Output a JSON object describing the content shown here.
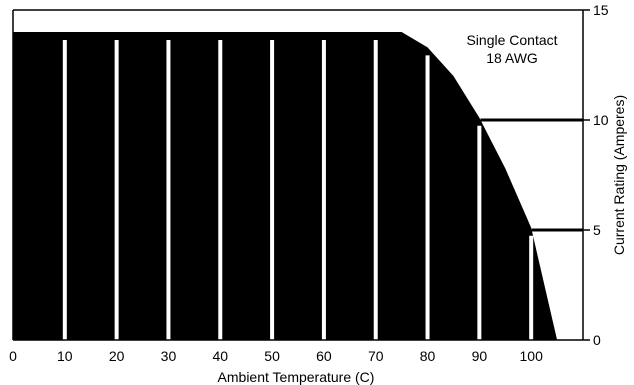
{
  "chart_data": {
    "type": "area",
    "title": "Single Contact",
    "subtitle": "18 AWG",
    "xlabel": "Ambient Temperature (C)",
    "ylabel": "Current Rating (Amperes)",
    "xlim": [
      0,
      110
    ],
    "ylim": [
      0,
      15
    ],
    "x_ticks": [
      0,
      10,
      20,
      30,
      40,
      50,
      60,
      70,
      80,
      90,
      100
    ],
    "y_ticks": [
      0,
      5,
      10,
      15
    ],
    "y_axis_side": "right",
    "grid": "vertical",
    "series": [
      {
        "x": [
          0,
          10,
          20,
          30,
          40,
          50,
          60,
          70,
          75,
          80,
          85,
          90,
          95,
          100,
          105
        ],
        "y": [
          14,
          14,
          14,
          14,
          14,
          14,
          14,
          14,
          14,
          13.3,
          12,
          10.1,
          7.8,
          5.1,
          0
        ]
      }
    ],
    "reference_lines": [
      10,
      5
    ],
    "colors": {
      "fill": "#000000",
      "grid": "#ffffff",
      "axis": "#000000"
    }
  }
}
